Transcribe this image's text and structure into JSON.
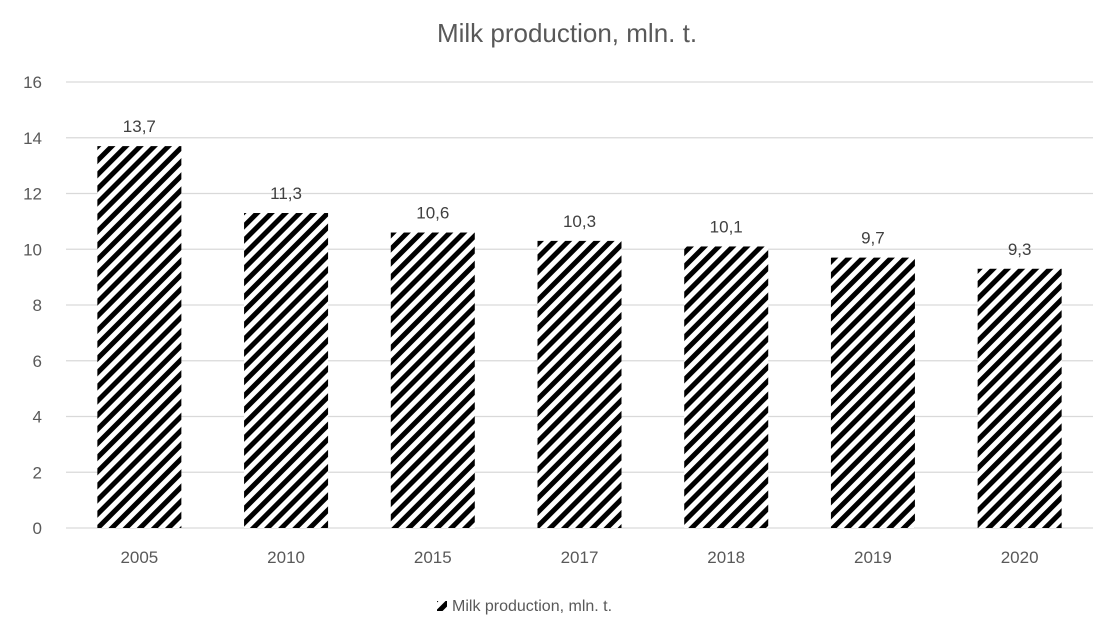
{
  "chart_data": {
    "type": "bar",
    "title": "Milk production, mln. t.",
    "categories": [
      "2005",
      "2010",
      "2015",
      "2017",
      "2018",
      "2019",
      "2020"
    ],
    "series": [
      {
        "name": "Milk production, mln. t.",
        "values": [
          13.7,
          11.3,
          10.6,
          10.3,
          10.1,
          9.7,
          9.3
        ],
        "labels": [
          "13,7",
          "11,3",
          "10,6",
          "10,3",
          "10,1",
          "9,7",
          "9,3"
        ]
      }
    ],
    "yticks": [
      "0",
      "2",
      "4",
      "6",
      "8",
      "10",
      "12",
      "14",
      "16"
    ],
    "ylim": [
      0,
      16
    ],
    "xlabel": "",
    "ylabel": "",
    "grid": true,
    "legend_position": "bottom-center",
    "colors": {
      "bar_stripe": "#000000",
      "bar_background": "#ffffff",
      "grid": "#d9d9d9",
      "text": "#595959"
    },
    "fill_pattern": "diagonal-stripes"
  }
}
